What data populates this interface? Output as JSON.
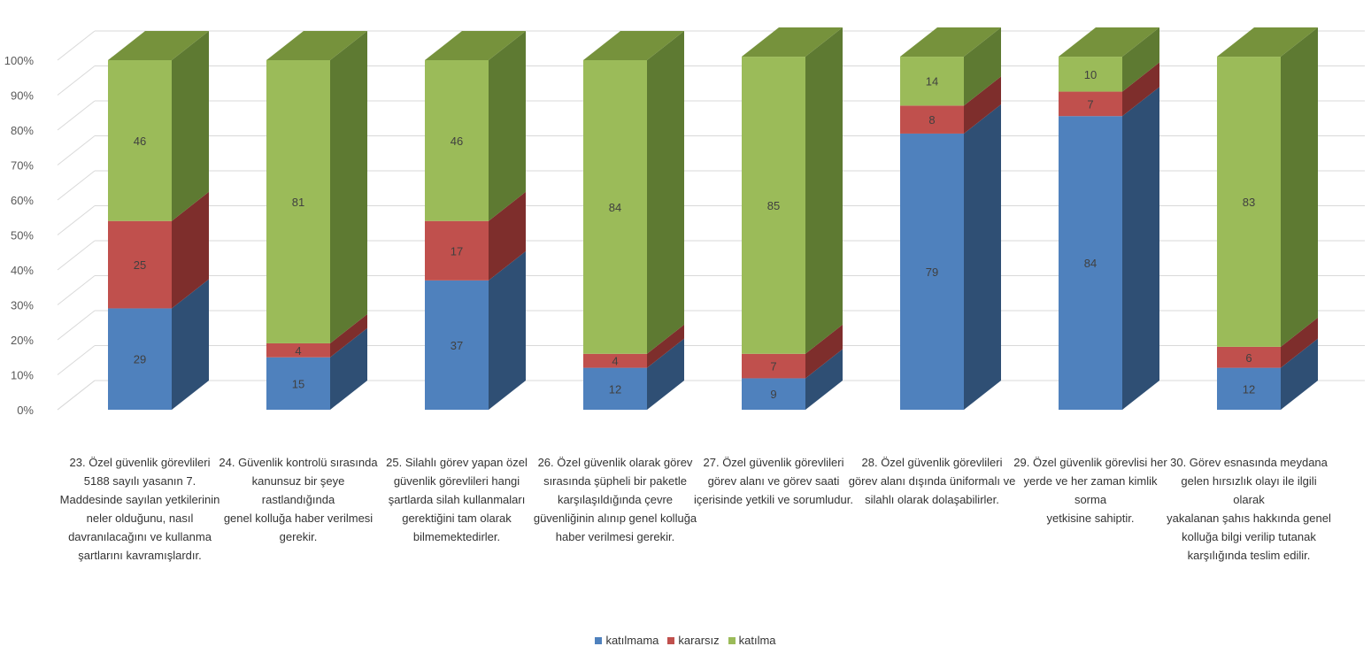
{
  "chart_data": {
    "type": "bar",
    "stacked": true,
    "percent": true,
    "three_d": true,
    "categories": [
      "23. Özel güvenlik görevlileri 5188 sayılı yasanın 7. Maddesinde sayılan yetkilerinin neler olduğunu, nasıl davranılacağını ve kullanma şartlarını kavramışlardır.",
      "24. Güvenlik kontrolü sırasında kanunsuz bir şeye rastlandığında genel kolluğa haber verilmesi gerekir.",
      "25. Silahlı görev yapan özel güvenlik görevlileri hangi şartlarda silah kullanmaları gerektiğini tam olarak bilmemektedirler.",
      "26. Özel güvenlik olarak görev sırasında şüpheli bir paketle karşılaşıldığında çevre güvenliğinin alınıp genel kolluğa haber verilmesi gerekir.",
      "27. Özel güvenlik görevlileri görev alanı ve görev saati içerisinde yetkili ve sorumludur.",
      "28. Özel güvenlik görevlileri görev alanı dışında üniformalı ve silahlı olarak dolaşabilirler.",
      "29. Özel güvenlik görevlisi her yerde ve her zaman kimlik sorma yetkisine sahiptir.",
      "30. Görev esnasında meydana gelen hırsızlık olayı ile ilgili olarak yakalanan şahıs hakkında genel kolluğa bilgi verilip tutanak karşılığında teslim edilir."
    ],
    "category_lines": [
      [
        "23. Özel güvenlik görevlileri",
        "5188 sayılı yasanın 7.",
        "Maddesinde sayılan yetkilerinin",
        "neler olduğunu, nasıl",
        "davranılacağını ve kullanma",
        "şartlarını kavramışlardır."
      ],
      [
        "24. Güvenlik kontrolü sırasında",
        "kanunsuz bir şeye rastlandığında",
        "genel kolluğa haber verilmesi",
        "gerekir."
      ],
      [
        "25. Silahlı görev yapan özel",
        "güvenlik görevlileri hangi",
        "şartlarda silah kullanmaları",
        "gerektiğini tam olarak",
        "bilmemektedirler."
      ],
      [
        "26. Özel güvenlik olarak görev",
        "sırasında şüpheli bir paketle",
        "karşılaşıldığında çevre",
        "güvenliğinin alınıp genel kolluğa",
        "haber verilmesi gerekir."
      ],
      [
        "27. Özel güvenlik görevlileri",
        "görev alanı ve görev saati",
        "içerisinde yetkili ve sorumludur."
      ],
      [
        "28. Özel güvenlik görevlileri",
        "görev alanı dışında üniformalı ve",
        "silahlı olarak dolaşabilirler."
      ],
      [
        "29. Özel güvenlik görevlisi her",
        "yerde ve her zaman kimlik sorma",
        "yetkisine sahiptir."
      ],
      [
        "30. Görev esnasında meydana",
        "gelen hırsızlık olayı ile ilgili olarak",
        "yakalanan şahıs hakkında genel",
        "kolluğa bilgi verilip tutanak",
        "karşılığında teslim edilir."
      ]
    ],
    "series": [
      {
        "name": "katılmama",
        "values": [
          29,
          15,
          37,
          12,
          9,
          79,
          84,
          12
        ],
        "color": "#4F81BD",
        "side_color": "#2F4F74",
        "top_color": "#3E6A9E"
      },
      {
        "name": "kararsız",
        "values": [
          25,
          4,
          17,
          4,
          7,
          8,
          7,
          6
        ],
        "color": "#C0504D",
        "side_color": "#7E2E2C",
        "top_color": "#9E3E3B"
      },
      {
        "name": "katılma",
        "values": [
          46,
          81,
          46,
          84,
          85,
          14,
          10,
          83
        ],
        "color": "#9BBB59",
        "side_color": "#5E7A32",
        "top_color": "#76923C"
      }
    ],
    "yticks": [
      "0%",
      "10%",
      "20%",
      "30%",
      "40%",
      "50%",
      "60%",
      "70%",
      "80%",
      "90%",
      "100%"
    ],
    "ylim": [
      0,
      100
    ],
    "grid": true,
    "legend_position": "bottom",
    "title": "",
    "xlabel": "",
    "ylabel": ""
  }
}
